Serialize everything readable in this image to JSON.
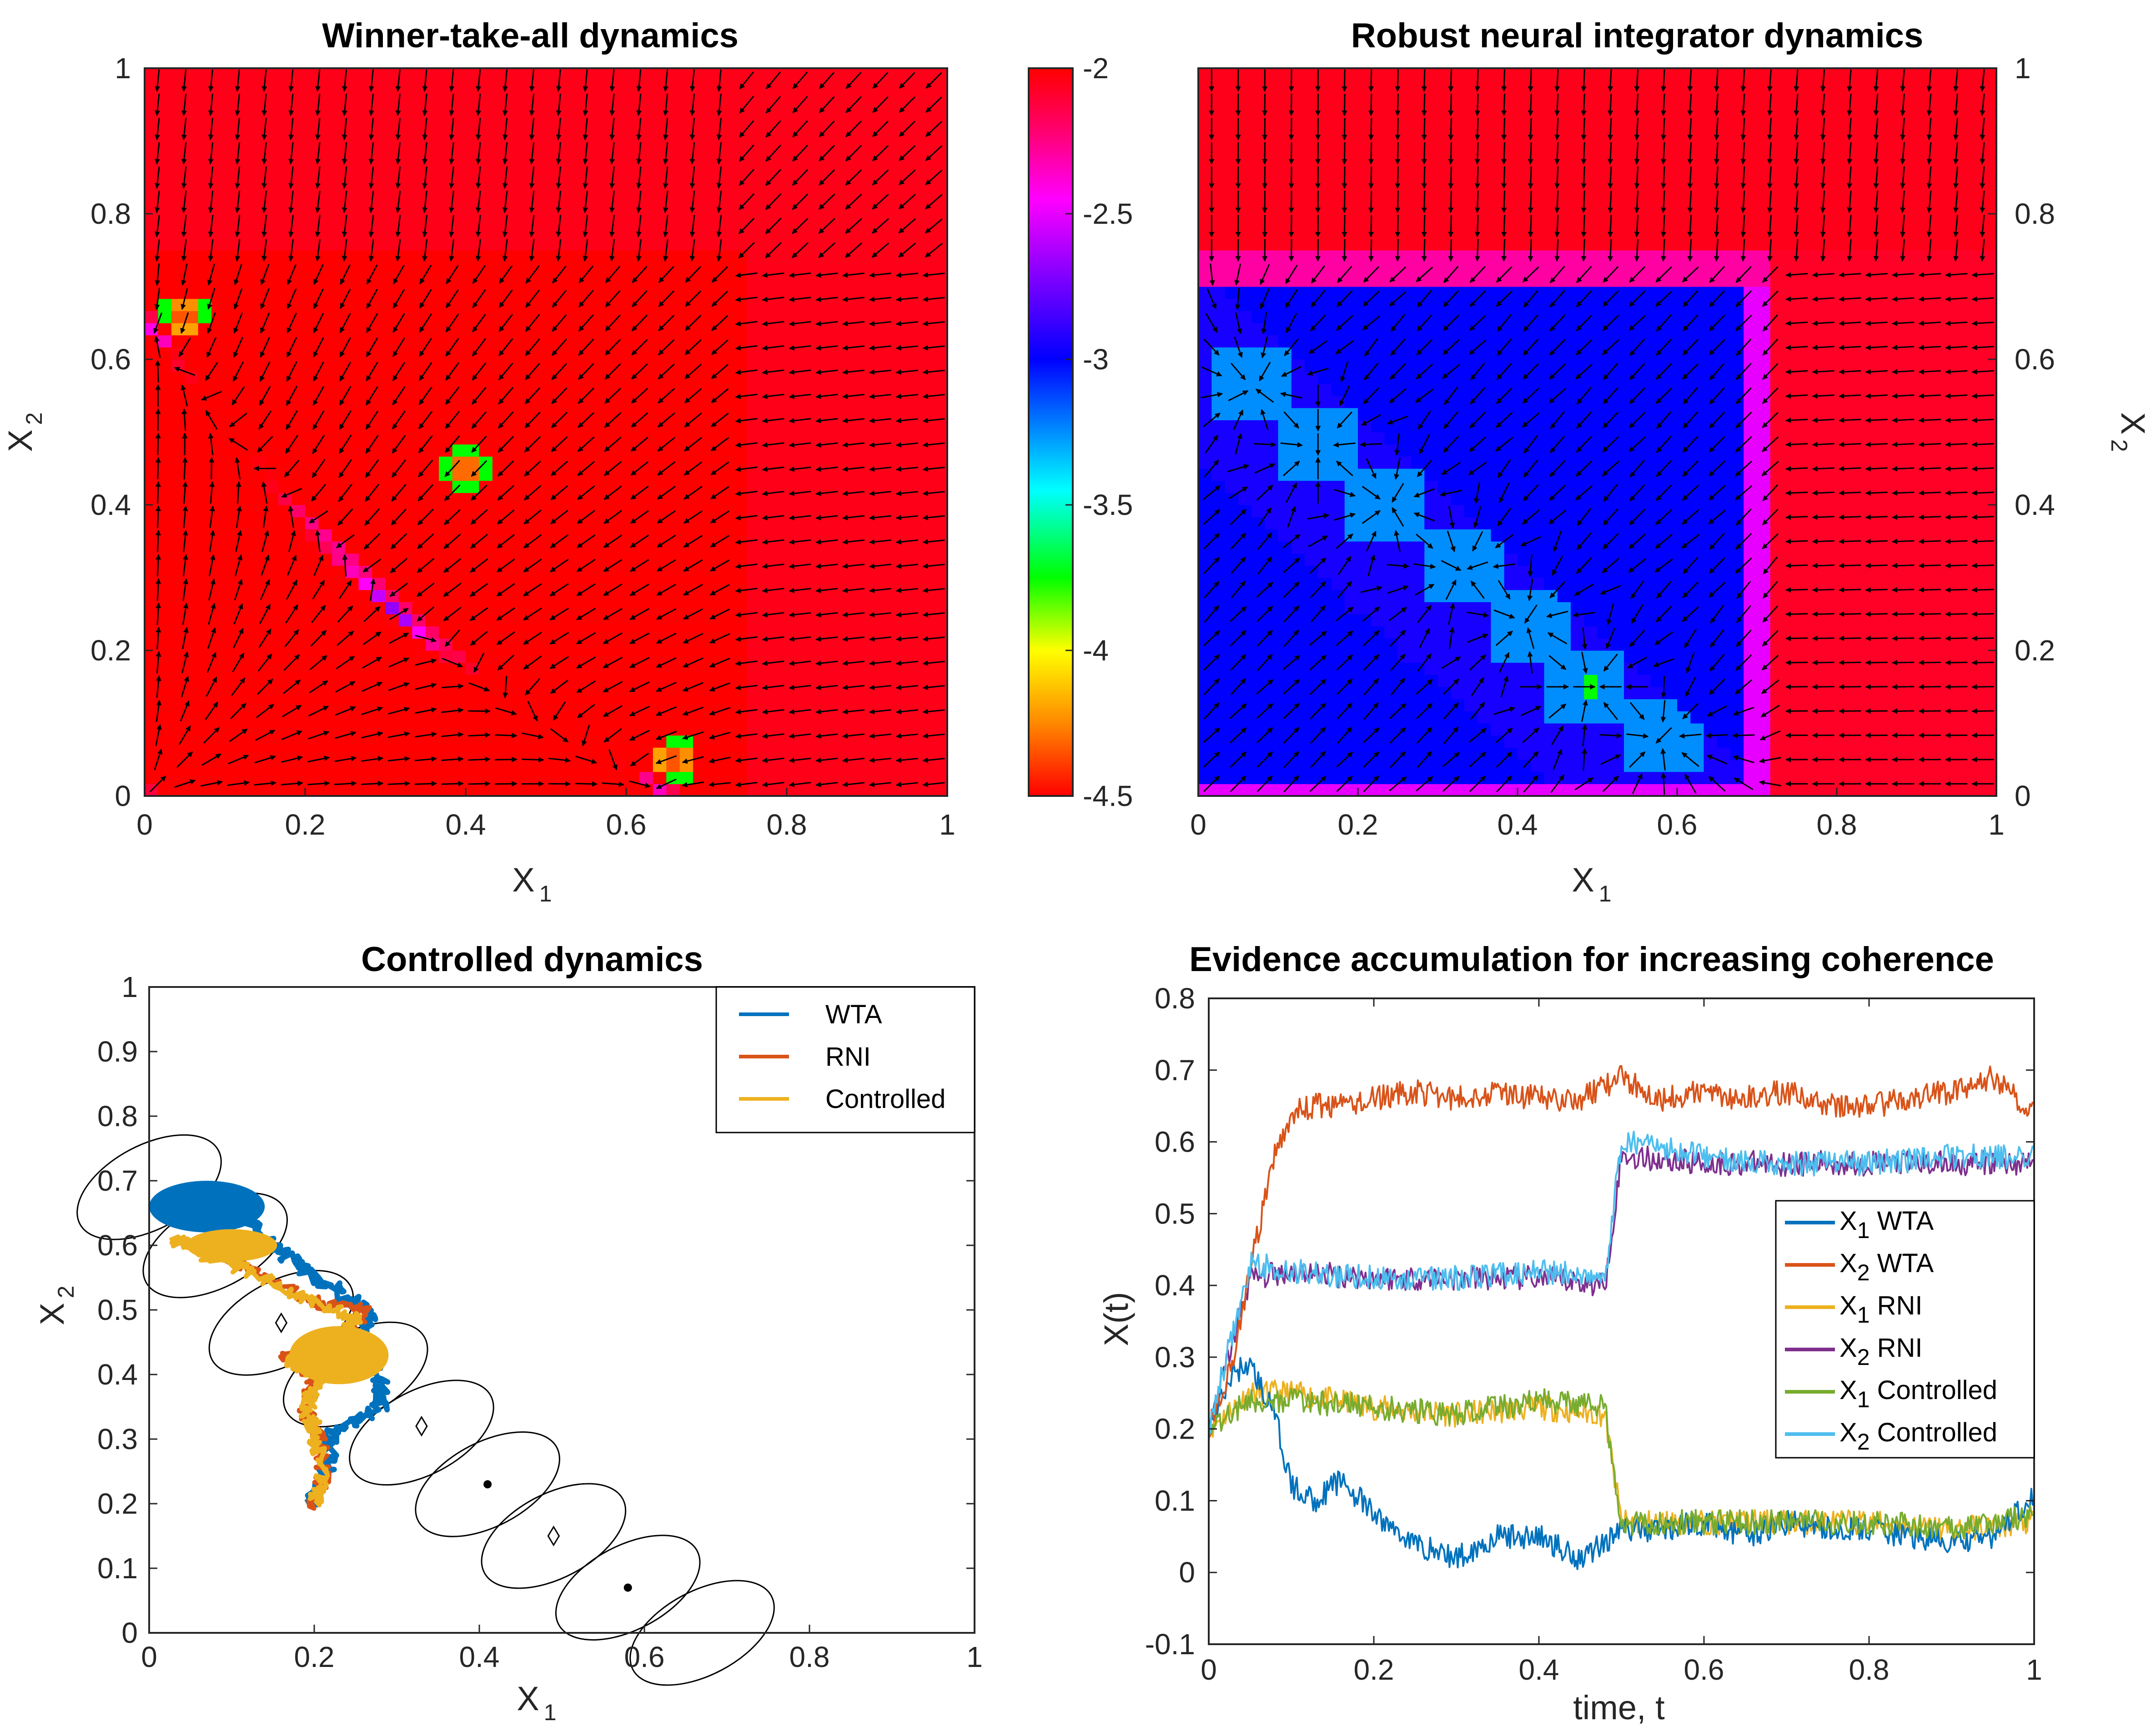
{
  "colors": {
    "wta": "#0072bd",
    "rni": "#d95319",
    "controlled": "#edb120",
    "x2rni": "#7e2f8e",
    "x1controlled": "#77ac30",
    "x2controlled": "#4dbeee",
    "field_cmap": [
      "#ff0000",
      "#ff8800",
      "#ffff00",
      "#00ff00",
      "#00ffff",
      "#0000ff",
      "#8800ff",
      "#ff00ff",
      "#ff0066",
      "#ff0000"
    ]
  },
  "chart_data": [
    {
      "id": "wta",
      "type": "heatmap",
      "title": "Winner-take-all dynamics",
      "xlabel": "X",
      "xlabel_sub": "1",
      "ylabel": "X",
      "ylabel_sub": "2",
      "xlim": [
        0,
        1
      ],
      "ylim": [
        0,
        1
      ],
      "xticks": [
        "0",
        "0.2",
        "0.4",
        "0.6",
        "0.8",
        "1"
      ],
      "yticks": [
        "0",
        "0.2",
        "0.4",
        "0.6",
        "0.8",
        "1"
      ],
      "value_range": [
        -4.5,
        -2
      ],
      "description_fields": {
        "fixed_points": [
          [
            0.05,
            0.66
          ],
          [
            0.4,
            0.45
          ],
          [
            0.66,
            0.05
          ]
        ],
        "saddle_points": [
          [
            0.08,
            0.65
          ],
          [
            0.65,
            0.08
          ]
        ]
      },
      "colorbar": {
        "ticks": [
          "-2",
          "-2.5",
          "-3",
          "-3.5",
          "-4",
          "-4.5"
        ],
        "range": [
          -4.5,
          -2
        ]
      }
    },
    {
      "id": "rni",
      "type": "heatmap",
      "title": "Robust neural integrator dynamics",
      "xlabel": "X",
      "xlabel_sub": "1",
      "ylabel": "X",
      "ylabel_sub": "2",
      "xlim": [
        0,
        1
      ],
      "ylim": [
        0,
        1
      ],
      "xticks": [
        "0",
        "0.2",
        "0.4",
        "0.6",
        "0.8",
        "1"
      ],
      "yticks": [
        "0",
        "0.2",
        "0.4",
        "0.6",
        "0.8",
        "1"
      ],
      "value_range": [
        -4.5,
        -2
      ],
      "attractor_line": [
        [
          0.0,
          0.7
        ],
        [
          0.7,
          0.0
        ]
      ],
      "attractors": [
        [
          0.07,
          0.56
        ],
        [
          0.15,
          0.48
        ],
        [
          0.24,
          0.4
        ],
        [
          0.33,
          0.31
        ],
        [
          0.41,
          0.24
        ],
        [
          0.49,
          0.15
        ],
        [
          0.58,
          0.08
        ]
      ],
      "highlight_point": [
        0.49,
        0.15
      ]
    },
    {
      "id": "controlled",
      "type": "line",
      "title": "Controlled dynamics",
      "xlabel": "X",
      "xlabel_sub": "1",
      "ylabel": "X",
      "ylabel_sub": "2",
      "xlim": [
        0,
        1
      ],
      "ylim": [
        0,
        1
      ],
      "xticks": [
        "0",
        "0.2",
        "0.4",
        "0.6",
        "0.8",
        "1"
      ],
      "yticks": [
        "0",
        "0.1",
        "0.2",
        "0.3",
        "0.4",
        "0.5",
        "0.6",
        "0.7",
        "0.8",
        "0.9",
        "1"
      ],
      "legend": {
        "placement": "top-right",
        "entries": [
          "WTA",
          "RNI",
          "Controlled"
        ]
      },
      "series": [
        {
          "name": "WTA",
          "path": [
            [
              0.2,
              0.2
            ],
            [
              0.2,
              0.22
            ],
            [
              0.22,
              0.27
            ],
            [
              0.22,
              0.31
            ],
            [
              0.28,
              0.35
            ],
            [
              0.28,
              0.4
            ],
            [
              0.24,
              0.44
            ],
            [
              0.27,
              0.49
            ],
            [
              0.23,
              0.53
            ],
            [
              0.18,
              0.57
            ],
            [
              0.15,
              0.6
            ],
            [
              0.12,
              0.64
            ],
            [
              0.07,
              0.68
            ],
            [
              0.03,
              0.66
            ],
            [
              0.01,
              0.66
            ]
          ]
        },
        {
          "name": "RNI",
          "path": [
            [
              0.2,
              0.2
            ],
            [
              0.21,
              0.24
            ],
            [
              0.21,
              0.3
            ],
            [
              0.19,
              0.34
            ],
            [
              0.2,
              0.4
            ],
            [
              0.16,
              0.43
            ],
            [
              0.24,
              0.46
            ],
            [
              0.26,
              0.5
            ],
            [
              0.2,
              0.51
            ],
            [
              0.13,
              0.56
            ],
            [
              0.06,
              0.6
            ]
          ]
        },
        {
          "name": "Controlled",
          "path": [
            [
              0.2,
              0.2
            ],
            [
              0.21,
              0.24
            ],
            [
              0.2,
              0.31
            ],
            [
              0.19,
              0.35
            ],
            [
              0.21,
              0.4
            ],
            [
              0.17,
              0.42
            ],
            [
              0.23,
              0.44
            ],
            [
              0.25,
              0.49
            ],
            [
              0.18,
              0.52
            ],
            [
              0.12,
              0.56
            ],
            [
              0.06,
              0.59
            ],
            [
              0.03,
              0.61
            ]
          ]
        }
      ],
      "control_markers": {
        "diamonds": [
          [
            0.16,
            0.48
          ],
          [
            0.33,
            0.32
          ],
          [
            0.49,
            0.15
          ]
        ],
        "dots": [
          [
            0.41,
            0.23
          ],
          [
            0.58,
            0.07
          ]
        ]
      }
    },
    {
      "id": "evidence",
      "type": "line",
      "title": "Evidence accumulation for increasing coherence",
      "xlabel": "time, t",
      "ylabel": "X(t)",
      "xlim": [
        0,
        1
      ],
      "ylim": [
        -0.1,
        0.8
      ],
      "xticks": [
        "0",
        "0.2",
        "0.4",
        "0.6",
        "0.8",
        "1"
      ],
      "yticks": [
        "-0.1",
        "0",
        "0.1",
        "0.2",
        "0.3",
        "0.4",
        "0.5",
        "0.6",
        "0.7",
        "0.8"
      ],
      "legend": {
        "placement": "right",
        "entries": [
          {
            "var": "X",
            "sub": "1",
            "rest": "WTA"
          },
          {
            "var": "X",
            "sub": "2",
            "rest": "WTA"
          },
          {
            "var": "X",
            "sub": "1",
            "rest": "RNI"
          },
          {
            "var": "X",
            "sub": "2",
            "rest": "RNI"
          },
          {
            "var": "X",
            "sub": "1",
            "rest": "Controlled"
          },
          {
            "var": "X",
            "sub": "2",
            "rest": "Controlled"
          }
        ]
      },
      "series": [
        {
          "name": "X1 WTA",
          "x": [
            0,
            0.03,
            0.05,
            0.08,
            0.1,
            0.13,
            0.16,
            0.2,
            0.25,
            0.3,
            0.35,
            0.4,
            0.45,
            0.5,
            0.55,
            0.6,
            0.65,
            0.7,
            0.75,
            0.8,
            0.85,
            0.9,
            0.95,
            1.0
          ],
          "y": [
            0.2,
            0.28,
            0.29,
            0.22,
            0.12,
            0.1,
            0.13,
            0.08,
            0.04,
            0.02,
            0.05,
            0.05,
            0.02,
            0.06,
            0.06,
            0.07,
            0.05,
            0.07,
            0.06,
            0.06,
            0.05,
            0.04,
            0.05,
            0.11
          ]
        },
        {
          "name": "X2 WTA",
          "x": [
            0,
            0.03,
            0.05,
            0.08,
            0.1,
            0.13,
            0.16,
            0.2,
            0.25,
            0.3,
            0.35,
            0.4,
            0.45,
            0.5,
            0.55,
            0.6,
            0.65,
            0.7,
            0.75,
            0.8,
            0.85,
            0.9,
            0.95,
            1.0
          ],
          "y": [
            0.2,
            0.3,
            0.42,
            0.58,
            0.64,
            0.65,
            0.65,
            0.66,
            0.67,
            0.66,
            0.67,
            0.66,
            0.66,
            0.69,
            0.66,
            0.67,
            0.66,
            0.67,
            0.65,
            0.65,
            0.66,
            0.67,
            0.69,
            0.64
          ]
        },
        {
          "name": "X1 RNI",
          "x": [
            0,
            0.05,
            0.1,
            0.2,
            0.3,
            0.4,
            0.48,
            0.5,
            0.6,
            0.7,
            0.8,
            0.9,
            1.0
          ],
          "y": [
            0.2,
            0.25,
            0.25,
            0.23,
            0.22,
            0.23,
            0.22,
            0.07,
            0.07,
            0.07,
            0.07,
            0.06,
            0.07
          ]
        },
        {
          "name": "X2 RNI",
          "x": [
            0,
            0.05,
            0.1,
            0.2,
            0.3,
            0.4,
            0.48,
            0.5,
            0.6,
            0.7,
            0.8,
            0.9,
            1.0
          ],
          "y": [
            0.2,
            0.41,
            0.42,
            0.41,
            0.41,
            0.41,
            0.4,
            0.58,
            0.57,
            0.57,
            0.57,
            0.57,
            0.57
          ]
        },
        {
          "name": "X1 Controlled",
          "x": [
            0,
            0.05,
            0.1,
            0.2,
            0.3,
            0.4,
            0.48,
            0.5,
            0.6,
            0.7,
            0.8,
            0.9,
            1.0
          ],
          "y": [
            0.2,
            0.24,
            0.24,
            0.23,
            0.22,
            0.24,
            0.23,
            0.07,
            0.07,
            0.07,
            0.07,
            0.06,
            0.08
          ]
        },
        {
          "name": "X2 Controlled",
          "x": [
            0,
            0.05,
            0.1,
            0.2,
            0.3,
            0.4,
            0.48,
            0.5,
            0.6,
            0.7,
            0.8,
            0.9,
            1.0
          ],
          "y": [
            0.2,
            0.43,
            0.42,
            0.41,
            0.41,
            0.42,
            0.41,
            0.6,
            0.58,
            0.57,
            0.57,
            0.58,
            0.58
          ]
        }
      ]
    }
  ]
}
